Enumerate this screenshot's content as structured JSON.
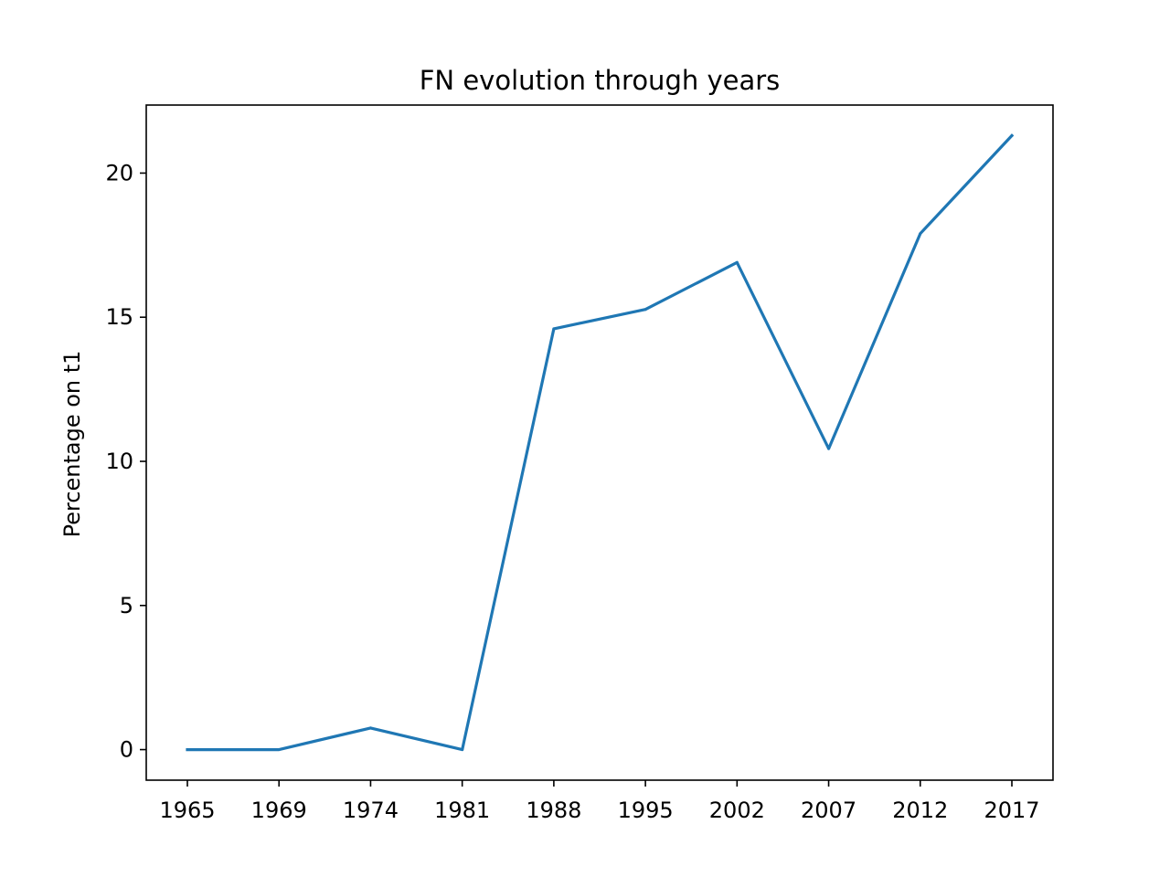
{
  "chart_data": {
    "type": "line",
    "title": "FN evolution through years",
    "xlabel": "",
    "ylabel": "Percentage on t1",
    "categories": [
      "1965",
      "1969",
      "1974",
      "1981",
      "1988",
      "1995",
      "2002",
      "2007",
      "2012",
      "2017"
    ],
    "series": [
      {
        "values": [
          0.0,
          0.0,
          0.75,
          0.0,
          14.6,
          15.27,
          16.9,
          10.44,
          17.9,
          21.3
        ],
        "color": "#1f77b4"
      }
    ],
    "yticks": [
      0,
      5,
      10,
      15,
      20
    ],
    "ylim": [
      -1.06,
      22.36
    ],
    "grid": false,
    "legend": "none"
  }
}
